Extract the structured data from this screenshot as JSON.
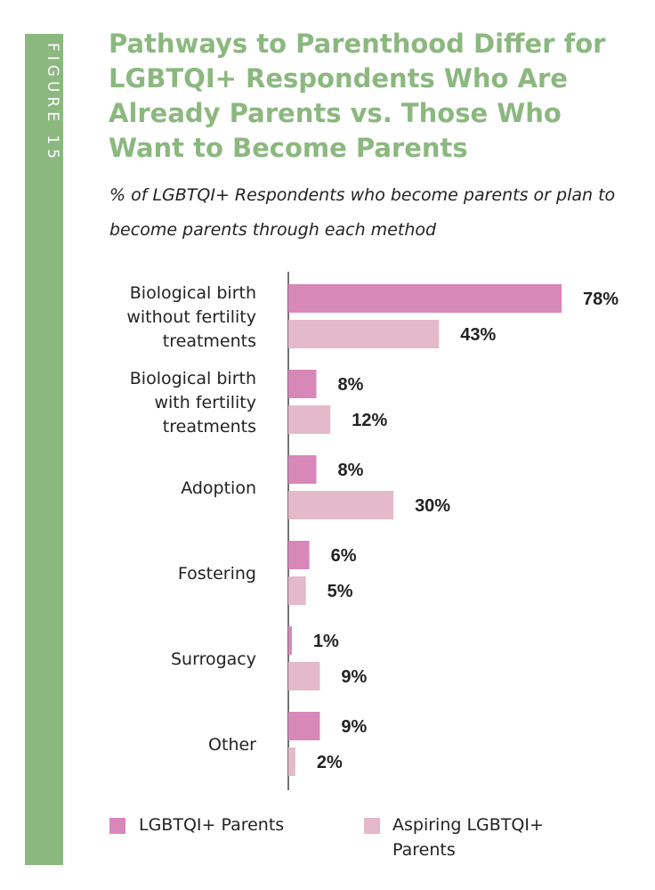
{
  "figure_label": "FIGURE 15",
  "title": "Pathways to Parenthood Differ for LGBTQI+ Respondents Who Are Already Parents vs. Those Who Want to Become Parents",
  "subtitle": "% of LGBTQI+ Respondents who become parents or plan to become parents through each method",
  "colors": {
    "accent_green": "#8bb87f",
    "parents": "#d787b8",
    "aspiring": "#e4b9c9"
  },
  "chart_data": {
    "type": "bar",
    "orientation": "horizontal",
    "unit": "%",
    "categories": [
      "Biological birth without fertility treatments",
      "Biological birth with fertility treatments",
      "Adoption",
      "Fostering",
      "Surrogacy",
      "Other"
    ],
    "category_lines": [
      [
        "Biological birth",
        "without fertility",
        "treatments"
      ],
      [
        "Biological birth",
        "with fertility",
        "treatments"
      ],
      [
        "Adoption"
      ],
      [
        "Fostering"
      ],
      [
        "Surrogacy"
      ],
      [
        "Other"
      ]
    ],
    "series": [
      {
        "name": "LGBTQI+ Parents",
        "color": "#d787b8",
        "values": [
          78,
          8,
          8,
          6,
          1,
          9
        ]
      },
      {
        "name": "Aspiring LGBTQI+ Parents",
        "color": "#e4b9c9",
        "values": [
          43,
          12,
          30,
          5,
          9,
          2
        ]
      }
    ],
    "value_labels": [
      [
        "78%",
        "8%",
        "8%",
        "6%",
        "1%",
        "9%"
      ],
      [
        "43%",
        "12%",
        "30%",
        "5%",
        "9%",
        "2%"
      ]
    ],
    "xlim": [
      0,
      78
    ],
    "grid": false,
    "legend_placement": "bottom"
  },
  "legend": {
    "parents": "LGBTQI+ Parents",
    "aspiring_line1": "Aspiring LGBTQI+",
    "aspiring_line2": "Parents"
  }
}
